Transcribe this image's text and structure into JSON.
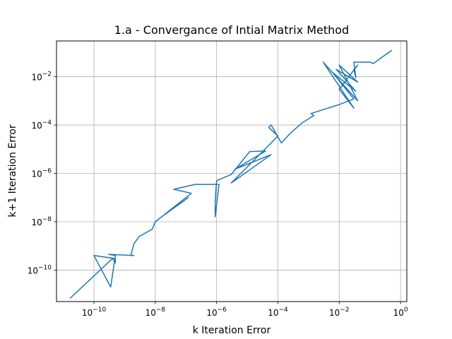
{
  "chart_data": {
    "type": "line",
    "title": "1.a - Convergance of Intial Matrix Method",
    "xlabel": "k Iteration Error",
    "ylabel": "k+1 Iteration Error",
    "xscale": "log",
    "yscale": "log",
    "xlim": [
      6e-12,
      1.6
    ],
    "ylim": [
      5e-12,
      0.3
    ],
    "grid": true,
    "x_ticks": [
      {
        "base": "10",
        "exp": "−10",
        "value": 1e-10
      },
      {
        "base": "10",
        "exp": "−8",
        "value": 1e-08
      },
      {
        "base": "10",
        "exp": "−6",
        "value": 1e-06
      },
      {
        "base": "10",
        "exp": "−4",
        "value": 0.0001
      },
      {
        "base": "10",
        "exp": "−2",
        "value": 0.01
      },
      {
        "base": "10",
        "exp": "0",
        "value": 1
      }
    ],
    "y_ticks": [
      {
        "base": "10",
        "exp": "−10",
        "value": 1e-10
      },
      {
        "base": "10",
        "exp": "−8",
        "value": 1e-08
      },
      {
        "base": "10",
        "exp": "−6",
        "value": 1e-06
      },
      {
        "base": "10",
        "exp": "−4",
        "value": 0.0001
      },
      {
        "base": "10",
        "exp": "−2",
        "value": 0.01
      }
    ],
    "series": [
      {
        "color": "#1f77b4",
        "x": [
          0.5,
          0.13,
          0.1,
          0.03,
          0.035,
          0.03,
          0.04,
          0.01,
          0.03,
          0.003,
          0.04,
          0.01,
          0.04,
          0.008,
          0.035,
          0.006,
          0.03,
          0.01,
          0.0012,
          0.0015,
          0.0006,
          0.00025,
          0.00025,
          0.00013,
          6e-05,
          5e-05,
          0.0001,
          3e-06,
          6e-05,
          4e-06,
          4e-05,
          1.2e-05,
          3e-06,
          1e-06,
          9e-07,
          9e-07,
          1.2e-06,
          2e-07,
          4e-08,
          1.5e-07,
          2e-08,
          1.2e-07,
          1.5e-08,
          1e-08,
          8e-09,
          4e-09,
          3e-09,
          2e-09,
          1.6e-09,
          2e-09,
          3e-10,
          3e-10,
          5e-10,
          3.5e-10,
          1e-10,
          5e-10,
          5e-10,
          4e-10,
          1.7e-11
        ],
        "y": [
          0.12,
          0.035,
          0.04,
          0.04,
          0.009,
          0.02,
          0.03,
          0.003,
          0.0005,
          0.04,
          0.001,
          0.03,
          0.006,
          0.02,
          0.0025,
          0.015,
          0.0012,
          0.0007,
          0.0003,
          0.00025,
          0.00012,
          4.5e-05,
          4.5e-05,
          1.8e-05,
          0.0001,
          8e-05,
          3.5e-05,
          4e-07,
          6e-06,
          1.5e-06,
          8.5e-06,
          8e-06,
          9e-07,
          5e-07,
          7.5e-08,
          1.6e-08,
          3.5e-07,
          3.5e-07,
          2.2e-07,
          1.5e-07,
          2e-08,
          1e-07,
          1.5e-08,
          1e-08,
          5e-09,
          3e-09,
          2.5e-09,
          1.2e-09,
          4e-10,
          4e-10,
          4.5e-10,
          4.5e-10,
          4e-10,
          2e-11,
          4e-10,
          3e-10,
          2e-10,
          3e-10,
          7e-12
        ]
      }
    ]
  }
}
